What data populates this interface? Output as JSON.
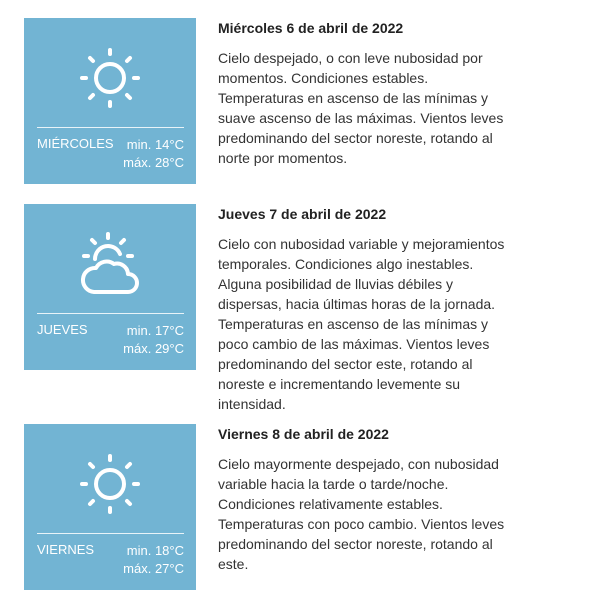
{
  "days": [
    {
      "day": "MIÉRCOLES",
      "min": "min. 14°C",
      "max": "máx. 28°C",
      "icon": "sun-icon",
      "title": "Miércoles 6 de abril de 2022",
      "desc": "Cielo despejado, o con leve nubosidad por momentos. Condiciones estables. Temperaturas en ascenso de las mínimas y suave ascenso de las máximas. Vientos leves predominando del sector noreste, rotando al norte por momentos."
    },
    {
      "day": "JUEVES",
      "min": "min. 17°C",
      "max": "máx. 29°C",
      "icon": "partly-cloudy-icon",
      "title": "Jueves 7 de abril de 2022",
      "desc": "Cielo con nubosidad variable y mejoramientos temporales. Condiciones algo inestables. Alguna posibilidad de lluvias débiles y dispersas, hacia últimas horas de la jornada. Temperaturas en ascenso de las mínimas y poco cambio de las máximas. Vientos leves predominando del sector este, rotando al noreste e incrementando levemente su intensidad."
    },
    {
      "day": "VIERNES",
      "min": "min. 18°C",
      "max": "máx. 27°C",
      "icon": "sun-icon",
      "title": "Viernes 8 de abril de 2022",
      "desc": "Cielo mayormente despejado, con nubosidad variable hacia la tarde o tarde/noche. Condiciones relativamente estables. Temperaturas con poco cambio. Vientos leves predominando del sector noreste, rotando al este."
    }
  ],
  "colors": {
    "card": "#72b4d3"
  }
}
